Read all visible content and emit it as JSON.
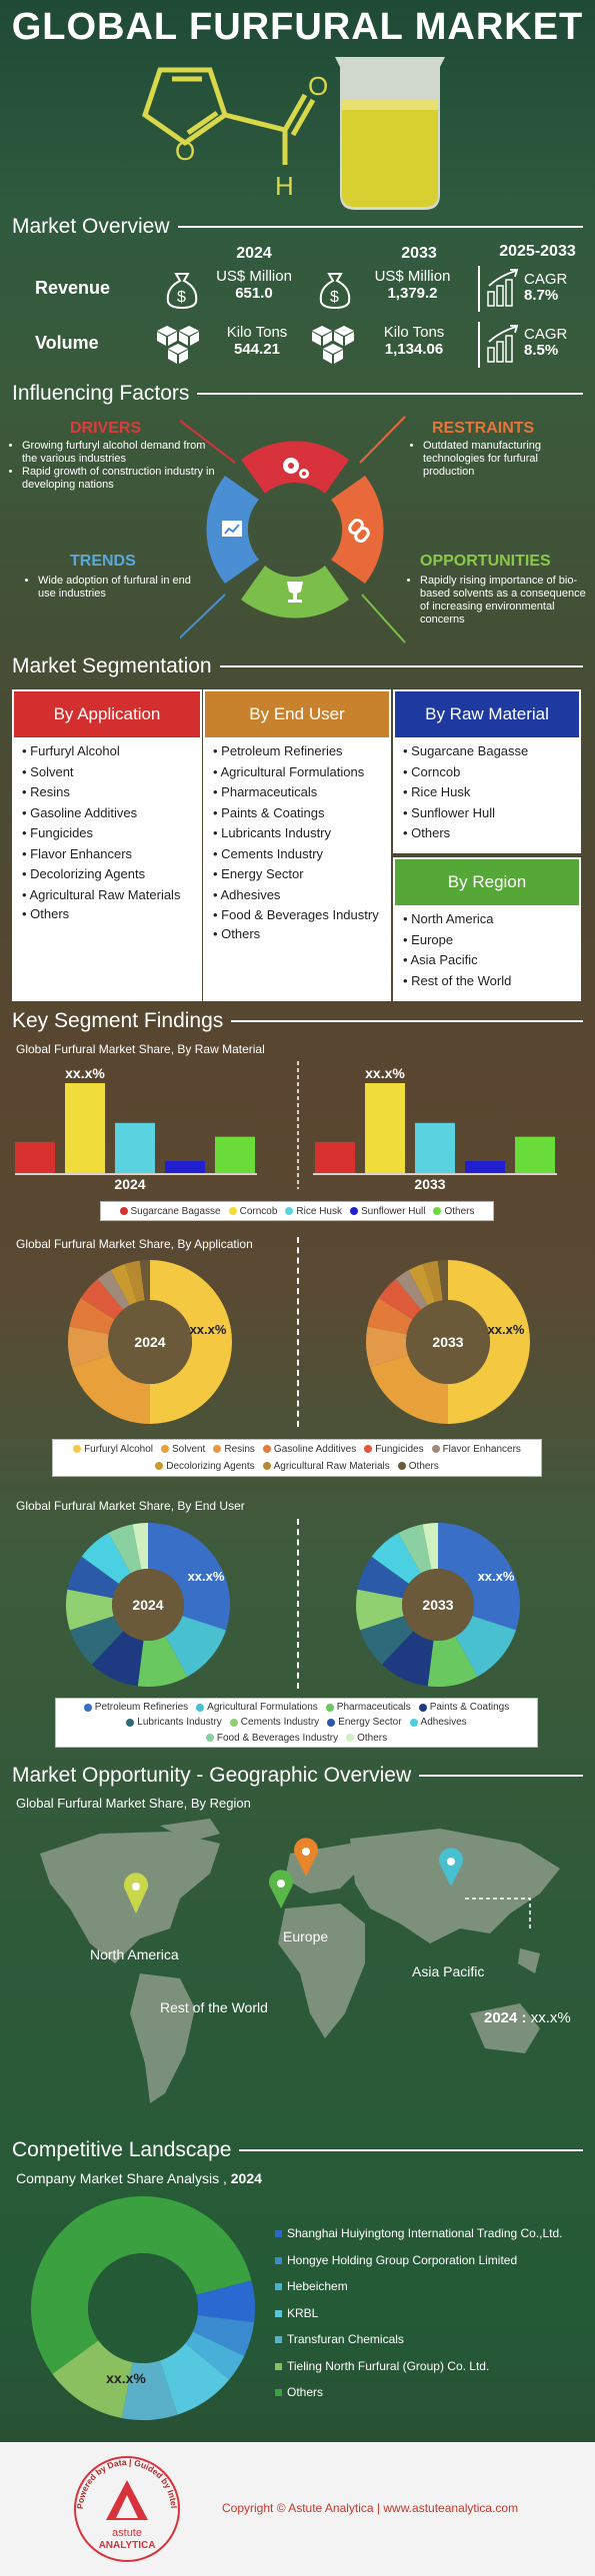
{
  "title": "GLOBAL FURFURAL MARKET",
  "market_overview": {
    "heading": "Market Overview",
    "revenue_label": "Revenue",
    "volume_label": "Volume",
    "year1": "2024",
    "year2": "2033",
    "period": "2025-2033",
    "revenue_unit": "US$ Million",
    "revenue_2024": "651.0",
    "revenue_2033": "1,379.2",
    "volume_unit": "Kilo Tons",
    "volume_2024": "544.21",
    "volume_2033": "1,134.06",
    "cagr_label": "CAGR",
    "revenue_cagr": "8.7%",
    "volume_cagr": "8.5%"
  },
  "influencing_factors": {
    "heading": "Influencing Factors",
    "drivers": {
      "title": "DRIVERS",
      "items": [
        "Growing furfuryl alcohol demand from the various industries",
        "Rapid growth of construction industry in developing nations"
      ]
    },
    "restraints": {
      "title": "RESTRAINTS",
      "items": [
        "Outdated manufacturing technologies for furfural production"
      ]
    },
    "trends": {
      "title": "TRENDS",
      "items": [
        "Wide adoption of furfural in end use industries"
      ]
    },
    "opportunities": {
      "title": "OPPORTUNITIES",
      "items": [
        "Rapidly rising importance of bio-based solvents as a consequence of increasing environmental concerns"
      ]
    },
    "colors": {
      "drivers": "#d8323c",
      "restraints": "#e8693a",
      "trends": "#4a8fd4",
      "opportunities": "#7bbf4a"
    }
  },
  "segmentation": {
    "heading": "Market Segmentation",
    "by_application": {
      "title": "By Application",
      "color": "#d32f2f",
      "items": [
        "Furfuryl Alcohol",
        "Solvent",
        "Resins",
        "Gasoline Additives",
        "Fungicides",
        "Flavor Enhancers",
        "Decolorizing Agents",
        "Agricultural Raw Materials",
        "Others"
      ]
    },
    "by_end_user": {
      "title": "By End User",
      "color": "#c8822e",
      "items": [
        "Petroleum Refineries",
        "Agricultural Formulations",
        "Pharmaceuticals",
        "Paints & Coatings",
        "Lubricants Industry",
        "Cements Industry",
        "Energy Sector",
        "Adhesives",
        "Food & Beverages Industry",
        "Others"
      ]
    },
    "by_raw_material": {
      "title": "By Raw Material",
      "color": "#1e3aa0",
      "items": [
        "Sugarcane Bagasse",
        "Corncob",
        "Rice Husk",
        "Sunflower Hull",
        "Others"
      ]
    },
    "by_region": {
      "title": "By Region",
      "color": "#55a838",
      "items": [
        "North America",
        "Europe",
        "Asia Pacific",
        "Rest of the World"
      ]
    }
  },
  "key_findings": {
    "heading": "Key Segment Findings",
    "raw_material_title": "Global Furfural Market Share, By Raw Material",
    "application_title": "Global Furfural Market Share, By Application",
    "end_user_title": "Global Furfural Market Share, By End User",
    "placeholder": "xx.x%"
  },
  "chart_data": [
    {
      "type": "bar",
      "title": "Global Furfural Market Share, By Raw Material",
      "groups": [
        "2024",
        "2033"
      ],
      "categories": [
        "Sugarcane Bagasse",
        "Corncob",
        "Rice Husk",
        "Sunflower Hull",
        "Others"
      ],
      "colors": [
        "#d93030",
        "#f0dc3a",
        "#5ad2e0",
        "#2020d0",
        "#6adc3a"
      ],
      "series": [
        {
          "name": "2024",
          "values": [
            18,
            52,
            29,
            7,
            21
          ],
          "label": "xx.x%"
        },
        {
          "name": "2033",
          "values": [
            18,
            52,
            29,
            7,
            21
          ],
          "label": "xx.x%"
        }
      ]
    },
    {
      "type": "pie",
      "title": "Global Furfural Market Share, By Application",
      "groups": [
        "2024",
        "2033"
      ],
      "categories": [
        "Furfuryl Alcohol",
        "Solvent",
        "Resins",
        "Gasoline Additives",
        "Fungicides",
        "Flavor Enhancers",
        "Decolorizing Agents",
        "Agricultural Raw Materials",
        "Others"
      ],
      "colors": [
        "#f5c842",
        "#e8a13a",
        "#e39a48",
        "#e27a3a",
        "#dd5a3a",
        "#a08a7a",
        "#c89a30",
        "#b88a30",
        "#6a5a3a"
      ],
      "values": [
        50,
        20,
        8,
        6,
        5,
        3,
        3,
        3,
        2
      ],
      "label": "xx.x%"
    },
    {
      "type": "pie",
      "title": "Global Furfural Market Share, By End User",
      "groups": [
        "2024",
        "2033"
      ],
      "categories": [
        "Petroleum Refineries",
        "Agricultural Formulations",
        "Pharmaceuticals",
        "Paints & Coatings",
        "Lubricants Industry",
        "Cements Industry",
        "Energy Sector",
        "Adhesives",
        "Food & Beverages Industry",
        "Others"
      ],
      "colors": [
        "#3a6fc8",
        "#48c0d0",
        "#6ac860",
        "#1e3a80",
        "#2e6a7a",
        "#90d070",
        "#2a5aa8",
        "#4ad0e0",
        "#8ad0a0",
        "#d0f0c0"
      ],
      "values": [
        30,
        12,
        10,
        10,
        8,
        8,
        7,
        7,
        5,
        3
      ],
      "label": "xx.x%"
    },
    {
      "type": "pie",
      "title": "Company Market Share Analysis",
      "categories": [
        "Shanghai Huiyingtong International Trading Co.,Ltd.",
        "Hongye Holding Group Corporation Limited",
        "Hebeichem",
        "KRBL",
        "Transfuran Chemicals",
        "Tieling North Furfural (Group) Co. Ltd.",
        "Others"
      ],
      "colors": [
        "#2a6ad0",
        "#3a8ad0",
        "#48b0d8",
        "#55c8e0",
        "#5ab0c8",
        "#8ac060",
        "#3aa040"
      ],
      "values": [
        6,
        5,
        4,
        9,
        8,
        12,
        56
      ],
      "label": "xx.x%"
    }
  ],
  "legends": {
    "raw_material": [
      "Sugarcane Bagasse",
      "Corncob",
      "Rice Husk",
      "Sunflower Hull",
      "Others"
    ],
    "application": [
      "Furfuryl Alcohol",
      "Solvent",
      "Resins",
      "Gasoline Additives",
      "Fungicides",
      "Flavor Enhancers",
      "Decolorizing Agents",
      "Agricultural Raw Materials",
      "Others"
    ],
    "end_user": [
      "Petroleum Refineries",
      "Agricultural Formulations",
      "Pharmaceuticals",
      "Paints & Coatings",
      "Lubricants Industry",
      "Cements Industry",
      "Energy Sector",
      "Adhesives",
      "Food & Beverages Industry",
      "Others"
    ]
  },
  "geography": {
    "heading": "Market Opportunity - Geographic Overview",
    "chart_title": "Global Furfural Market Share, By Region",
    "regions": [
      "North America",
      "Europe",
      "Asia Pacific",
      "Rest of the World"
    ],
    "pin_colors": [
      "#c8d84a",
      "#e8842a",
      "#48c0d0",
      "#5ab848"
    ],
    "callout_year": "2024",
    "callout_value": "xx.x%"
  },
  "competitive": {
    "heading": "Competitive Landscape",
    "subtitle": "Company Market Share Analysis",
    "year": "2024",
    "placeholder": "xx.x%"
  },
  "footer": {
    "copyright": "Copyright © Astute Analytica  |  www.astuteanalytica.com",
    "logo_ring_text": "Powered by Data | Guided by Intelligence",
    "logo_name": "astute",
    "logo_name2": "ANALYTICA"
  }
}
